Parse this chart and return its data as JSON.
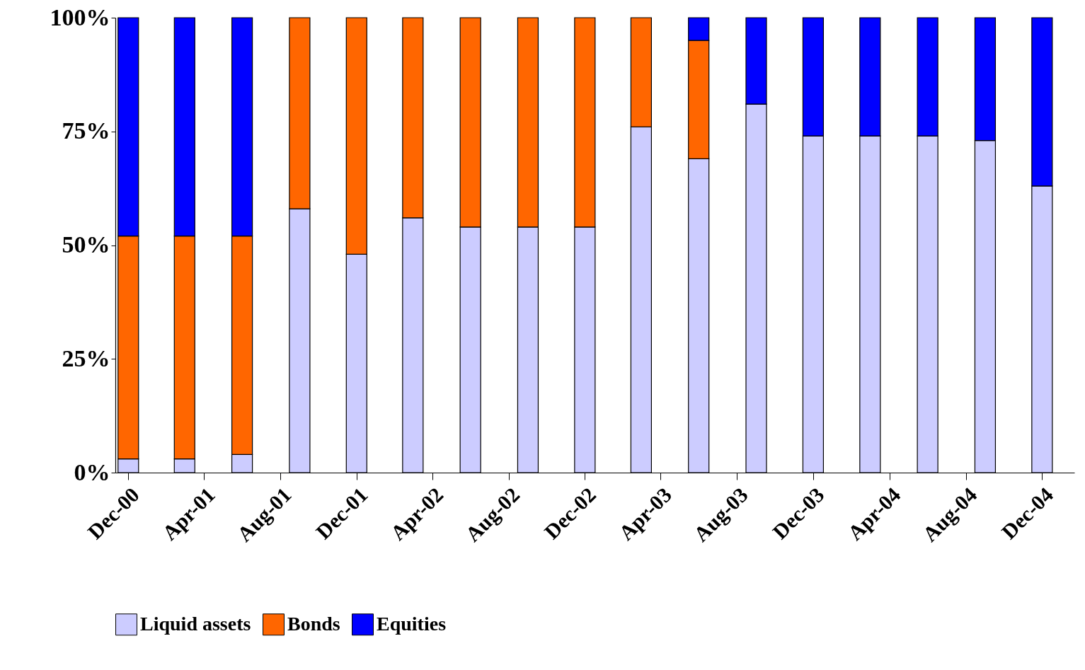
{
  "chart_data": {
    "type": "bar",
    "stacked": true,
    "x": [
      "2000-12",
      "2001-03",
      "2001-06",
      "2001-09",
      "2001-12",
      "2002-03",
      "2002-06",
      "2002-09",
      "2002-12",
      "2003-03",
      "2003-06",
      "2003-09",
      "2003-12",
      "2004-03",
      "2004-06",
      "2004-09",
      "2004-12"
    ],
    "series": [
      {
        "name": "Liquid assets",
        "color": "#ccccff",
        "values": [
          3,
          3,
          4,
          58,
          48,
          56,
          54,
          54,
          54,
          76,
          69,
          81,
          74,
          74,
          74,
          73,
          63
        ]
      },
      {
        "name": "Bonds",
        "color": "#ff6600",
        "values": [
          49,
          49,
          48,
          42,
          52,
          44,
          46,
          46,
          46,
          24,
          26,
          null,
          null,
          null,
          null,
          null,
          null
        ]
      },
      {
        "name": "Equities",
        "color": "#0000ff",
        "values": [
          48,
          48,
          48,
          null,
          null,
          null,
          null,
          null,
          null,
          null,
          5,
          19,
          26,
          26,
          26,
          27,
          37
        ]
      }
    ],
    "xlim": [
      "2000-11-16",
      "2005-01-16"
    ],
    "xticks": [
      {
        "value": "2000-12",
        "label": "Dec-00"
      },
      {
        "value": "2001-04",
        "label": "Apr-01"
      },
      {
        "value": "2001-08",
        "label": "Aug-01"
      },
      {
        "value": "2001-12",
        "label": "Dec-01"
      },
      {
        "value": "2002-04",
        "label": "Apr-02"
      },
      {
        "value": "2002-08",
        "label": "Aug-02"
      },
      {
        "value": "2002-12",
        "label": "Dec-02"
      },
      {
        "value": "2003-04",
        "label": "Apr-03"
      },
      {
        "value": "2003-08",
        "label": "Aug-03"
      },
      {
        "value": "2003-12",
        "label": "Dec-03"
      },
      {
        "value": "2004-04",
        "label": "Apr-04"
      },
      {
        "value": "2004-08",
        "label": "Aug-04"
      },
      {
        "value": "2004-12",
        "label": "Dec-04"
      }
    ],
    "ylim": [
      0,
      100
    ],
    "yticks": [
      {
        "value": 0,
        "label": "0%"
      },
      {
        "value": 25,
        "label": "25%"
      },
      {
        "value": 50,
        "label": "50%"
      },
      {
        "value": 75,
        "label": "75%"
      },
      {
        "value": 100,
        "label": "100%"
      }
    ],
    "grid": false,
    "legend": "bottom"
  }
}
